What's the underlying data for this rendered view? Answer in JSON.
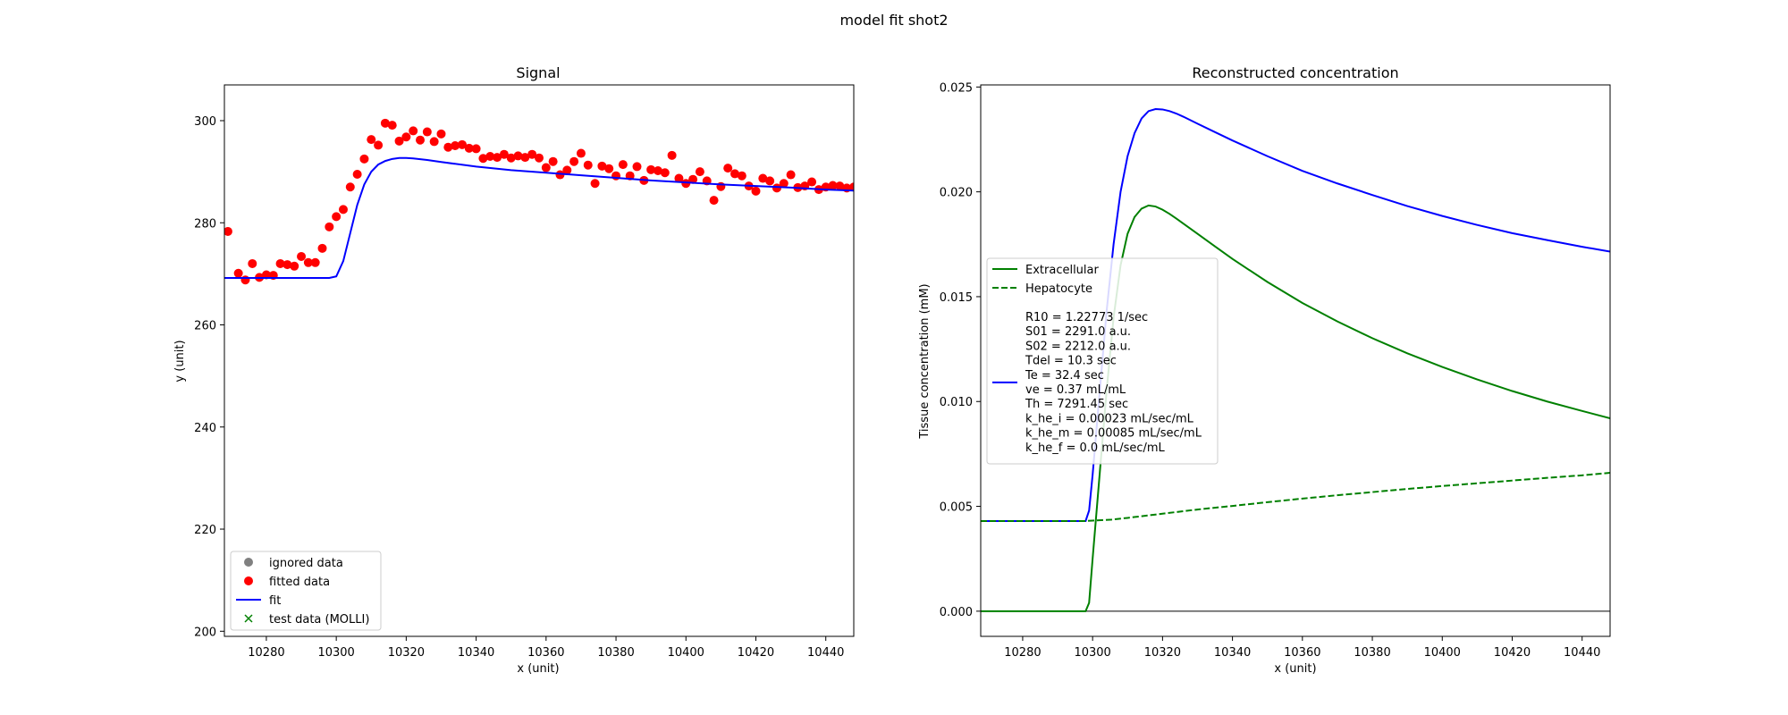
{
  "figure": {
    "title": "model fit shot2"
  },
  "chart_data": [
    {
      "type": "scatter",
      "title": "Signal",
      "xlabel": "x (unit)",
      "ylabel": "y (unit)",
      "xlim": [
        10268,
        10448
      ],
      "ylim": [
        199,
        307
      ],
      "xticks": [
        10280,
        10300,
        10320,
        10340,
        10360,
        10380,
        10400,
        10420,
        10440
      ],
      "yticks": [
        200,
        220,
        240,
        260,
        280,
        300
      ],
      "legend_position": "lower-left",
      "legend": [
        {
          "label": "ignored data",
          "marker": "circle",
          "color": "#808080"
        },
        {
          "label": "fitted data",
          "marker": "circle",
          "color": "#ff0000"
        },
        {
          "label": "fit",
          "marker": "line",
          "color": "#0000ff"
        },
        {
          "label": "test data (MOLLI)",
          "marker": "x",
          "color": "#008000"
        }
      ],
      "series": [
        {
          "name": "fitted data",
          "kind": "points",
          "color": "#ff0000",
          "x": [
            10269,
            10272,
            10274,
            10276,
            10278,
            10280,
            10282,
            10284,
            10286,
            10288,
            10290,
            10292,
            10294,
            10296,
            10298,
            10300,
            10302,
            10304,
            10306,
            10308,
            10310,
            10312,
            10314,
            10316,
            10318,
            10320,
            10322,
            10324,
            10326,
            10328,
            10330,
            10332,
            10334,
            10336,
            10338,
            10340,
            10342,
            10344,
            10346,
            10348,
            10350,
            10352,
            10354,
            10356,
            10358,
            10360,
            10362,
            10364,
            10366,
            10368,
            10370,
            10372,
            10374,
            10376,
            10378,
            10380,
            10382,
            10384,
            10386,
            10388,
            10390,
            10392,
            10394,
            10396,
            10398,
            10400,
            10402,
            10404,
            10406,
            10408,
            10410,
            10412,
            10414,
            10416,
            10418,
            10420,
            10422,
            10424,
            10426,
            10428,
            10430,
            10432,
            10434,
            10436,
            10438,
            10440,
            10442,
            10444,
            10446,
            10448
          ],
          "y": [
            278.3,
            270.1,
            268.8,
            272.0,
            269.3,
            269.8,
            269.7,
            272.0,
            271.8,
            271.5,
            273.4,
            272.2,
            272.2,
            275.0,
            279.2,
            281.2,
            282.6,
            287.0,
            289.5,
            292.5,
            296.3,
            295.2,
            299.5,
            299.1,
            296.0,
            296.8,
            298.0,
            296.2,
            297.8,
            295.9,
            297.4,
            294.8,
            295.1,
            295.3,
            294.6,
            294.5,
            292.6,
            293.0,
            292.8,
            293.4,
            292.7,
            293.1,
            292.8,
            293.4,
            292.7,
            290.8,
            292.0,
            289.4,
            290.3,
            292.0,
            293.6,
            291.3,
            287.7,
            291.1,
            290.6,
            289.2,
            291.4,
            289.2,
            291.0,
            288.3,
            290.4,
            290.2,
            289.8,
            293.2,
            288.7,
            287.7,
            288.5,
            290.0,
            288.2,
            284.4,
            287.1,
            290.7,
            289.6,
            289.2,
            287.2,
            286.2,
            288.7,
            288.2,
            286.8,
            287.7,
            289.4,
            286.9,
            287.2,
            288.0,
            286.5,
            287.0,
            287.3,
            287.2,
            286.8,
            287.0
          ]
        },
        {
          "name": "fit",
          "kind": "line",
          "color": "#0000ff",
          "x": [
            10268,
            10272,
            10276,
            10280,
            10284,
            10288,
            10292,
            10296,
            10298,
            10300,
            10302,
            10304,
            10306,
            10308,
            10310,
            10312,
            10314,
            10316,
            10318,
            10320,
            10322,
            10326,
            10330,
            10340,
            10350,
            10360,
            10370,
            10380,
            10390,
            10400,
            10410,
            10420,
            10430,
            10440,
            10448
          ],
          "y": [
            269.2,
            269.2,
            269.2,
            269.2,
            269.2,
            269.2,
            269.2,
            269.2,
            269.2,
            269.5,
            272.5,
            278.0,
            283.5,
            287.5,
            290.0,
            291.4,
            292.1,
            292.5,
            292.7,
            292.7,
            292.6,
            292.3,
            291.9,
            291.0,
            290.3,
            289.8,
            289.3,
            288.8,
            288.3,
            287.9,
            287.5,
            287.2,
            286.9,
            286.5,
            286.3
          ]
        }
      ]
    },
    {
      "type": "line",
      "title": "Reconstructed concentration",
      "xlabel": "x (unit)",
      "ylabel": "Tissue concentration (mM)",
      "xlim": [
        10268,
        10448
      ],
      "ylim": [
        -0.0012,
        0.0251
      ],
      "xticks": [
        10280,
        10300,
        10320,
        10340,
        10360,
        10380,
        10400,
        10420,
        10440
      ],
      "yticks": [
        0.0,
        0.005,
        0.01,
        0.015,
        0.02,
        0.025
      ],
      "ytick_labels": [
        "0.000",
        "0.005",
        "0.010",
        "0.015",
        "0.020",
        "0.025"
      ],
      "hline": {
        "y": 0,
        "color": "#000000"
      },
      "legend_position": "center-left",
      "legend": [
        {
          "label": "Extracellular",
          "style": "solid",
          "color": "#008000"
        },
        {
          "label": "Hepatocyte",
          "style": "dashed",
          "color": "#008000"
        }
      ],
      "params_line_color": "#0000ff",
      "params": [
        "R10 = 1.22773 1/sec",
        "S01 = 2291.0 a.u.",
        "S02 = 2212.0 a.u.",
        "Tdel = 10.3 sec",
        "Te = 32.4 sec",
        "ve = 0.37 mL/mL",
        "Th = 7291.45 sec",
        "k_he_i = 0.00023 mL/sec/mL",
        "k_he_m = 0.00085 mL/sec/mL",
        "k_he_f = 0.0 mL/sec/mL"
      ],
      "series": [
        {
          "kind": "line",
          "style": "solid",
          "color": "#0000ff",
          "x": [
            10268,
            10280,
            10290,
            10296,
            10298,
            10299,
            10300,
            10302,
            10304,
            10306,
            10308,
            10310,
            10312,
            10314,
            10316,
            10318,
            10320,
            10322,
            10324,
            10326,
            10330,
            10335,
            10340,
            10350,
            10360,
            10370,
            10380,
            10390,
            10400,
            10410,
            10420,
            10430,
            10440,
            10448
          ],
          "y": [
            0.0043,
            0.0043,
            0.0043,
            0.0043,
            0.0043,
            0.0048,
            0.0065,
            0.0104,
            0.0143,
            0.0175,
            0.02,
            0.0217,
            0.0228,
            0.0235,
            0.02385,
            0.02395,
            0.02393,
            0.02385,
            0.02373,
            0.02358,
            0.02325,
            0.02285,
            0.02245,
            0.0217,
            0.021,
            0.0204,
            0.01985,
            0.01932,
            0.01885,
            0.01842,
            0.01803,
            0.0177,
            0.01738,
            0.01715
          ]
        },
        {
          "kind": "line",
          "style": "solid",
          "color": "#008000",
          "x": [
            10268,
            10280,
            10290,
            10296,
            10298,
            10299,
            10300,
            10302,
            10304,
            10306,
            10308,
            10310,
            10312,
            10314,
            10316,
            10318,
            10320,
            10322,
            10324,
            10326,
            10330,
            10335,
            10340,
            10350,
            10360,
            10370,
            10380,
            10390,
            10400,
            10410,
            10420,
            10430,
            10440,
            10448
          ],
          "y": [
            0.0,
            0.0,
            0.0,
            0.0,
            0.0,
            0.0004,
            0.0025,
            0.0065,
            0.0105,
            0.014,
            0.0165,
            0.018,
            0.0188,
            0.0192,
            0.01935,
            0.0193,
            0.01915,
            0.01895,
            0.01872,
            0.01848,
            0.018,
            0.0174,
            0.0168,
            0.0157,
            0.0147,
            0.01382,
            0.01302,
            0.0123,
            0.01165,
            0.01105,
            0.0105,
            0.01,
            0.00955,
            0.0092
          ]
        },
        {
          "kind": "line",
          "style": "dashed",
          "color": "#008000",
          "x": [
            10268,
            10280,
            10290,
            10298,
            10300,
            10305,
            10310,
            10320,
            10330,
            10340,
            10350,
            10360,
            10370,
            10380,
            10390,
            10400,
            10410,
            10420,
            10430,
            10440,
            10448
          ],
          "y": [
            0.0043,
            0.0043,
            0.0043,
            0.0043,
            0.00432,
            0.00436,
            0.00445,
            0.00465,
            0.00485,
            0.00502,
            0.0052,
            0.00537,
            0.00553,
            0.00568,
            0.00583,
            0.00597,
            0.0061,
            0.00623,
            0.00636,
            0.00648,
            0.0066
          ]
        }
      ]
    }
  ]
}
